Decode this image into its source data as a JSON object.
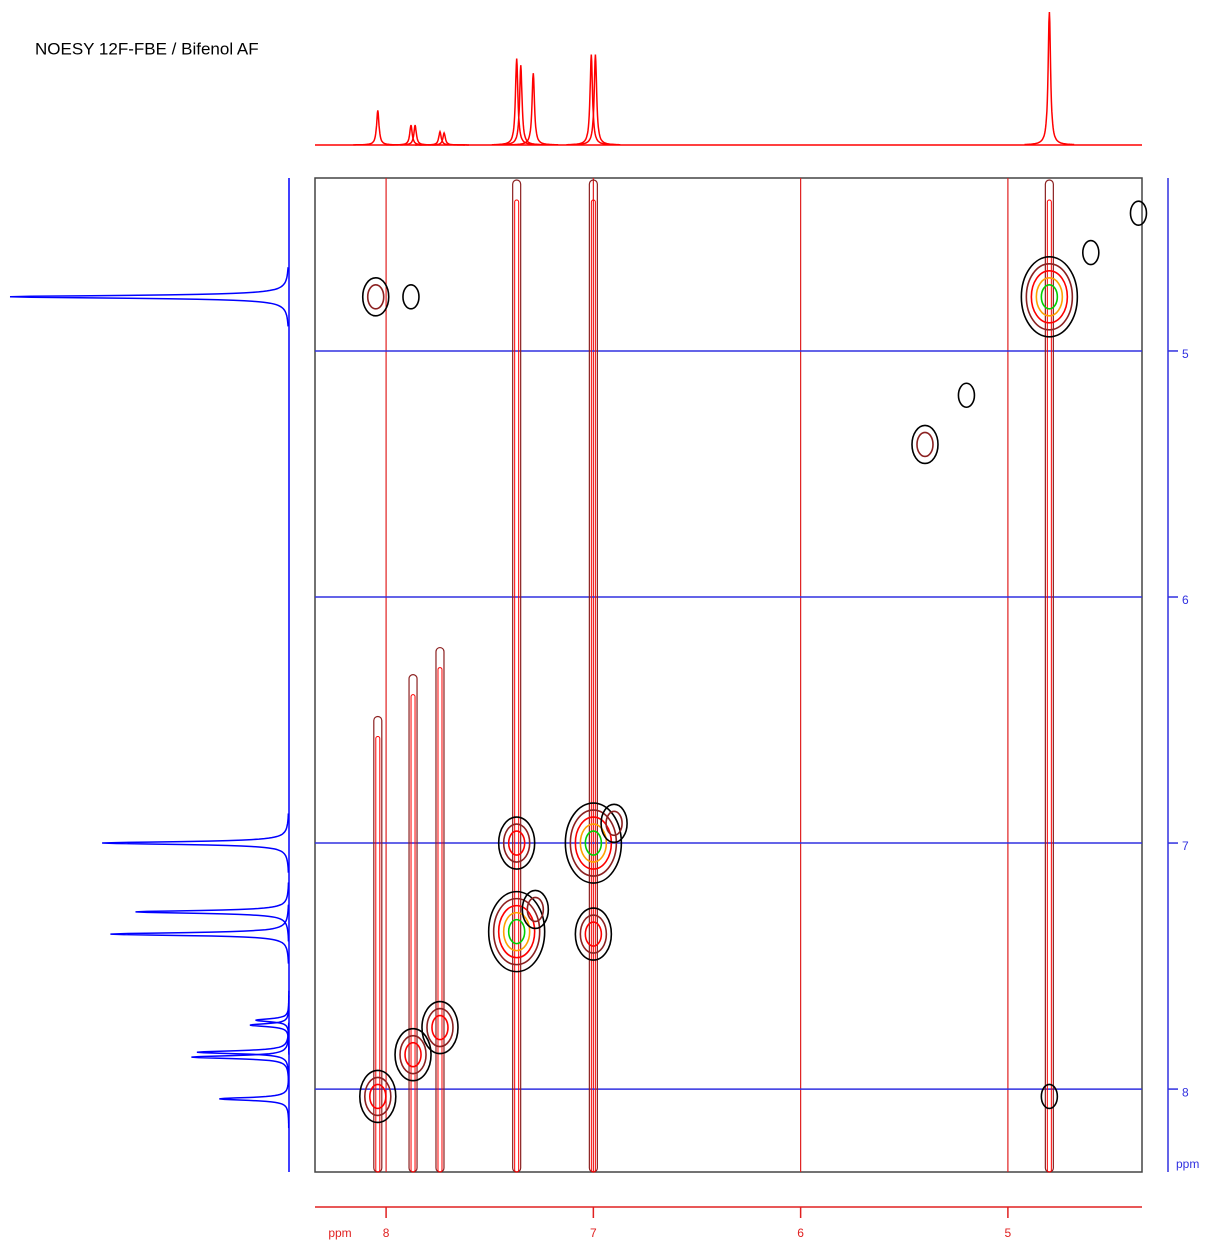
{
  "chart_data": {
    "type": "nmr2d",
    "title": "NOESY 12F-FBE / Bifenol AF",
    "x_label": "ppm",
    "y_label": "ppm",
    "xlim": [
      8.343,
      4.353
    ],
    "ylim": [
      4.297,
      8.337
    ],
    "xticks": [
      8,
      7,
      6,
      5
    ],
    "yticks": [
      5,
      6,
      7,
      8
    ],
    "grid": true,
    "x_grid_color": "#e02020",
    "y_grid_color": "#3030e0",
    "contour_colors": [
      "#000000",
      "#8b2020",
      "#ff0000",
      "#ffa000",
      "#00d000"
    ],
    "peaks": [
      {
        "x": 8.04,
        "y": 8.03,
        "intensity": 0.6
      },
      {
        "x": 7.87,
        "y": 7.86,
        "intensity": 0.6
      },
      {
        "x": 7.74,
        "y": 7.75,
        "intensity": 0.55
      },
      {
        "x": 7.37,
        "y": 7.36,
        "intensity": 0.9
      },
      {
        "x": 7.0,
        "y": 7.0,
        "intensity": 0.9
      },
      {
        "x": 4.8,
        "y": 4.78,
        "intensity": 0.85
      },
      {
        "x": 7.37,
        "y": 7.0,
        "intensity": 0.45
      },
      {
        "x": 7.0,
        "y": 7.37,
        "intensity": 0.45
      },
      {
        "x": 7.28,
        "y": 7.27,
        "intensity": 0.4
      },
      {
        "x": 6.9,
        "y": 6.92,
        "intensity": 0.35
      },
      {
        "x": 8.05,
        "y": 4.78,
        "intensity": 0.25
      },
      {
        "x": 7.88,
        "y": 4.78,
        "intensity": 0.2
      },
      {
        "x": 5.4,
        "y": 5.38,
        "intensity": 0.25
      },
      {
        "x": 5.2,
        "y": 5.18,
        "intensity": 0.2
      },
      {
        "x": 4.8,
        "y": 8.03,
        "intensity": 0.2
      },
      {
        "x": 4.37,
        "y": 4.44,
        "intensity": 0.15
      },
      {
        "x": 4.6,
        "y": 4.6,
        "intensity": 0.15
      }
    ],
    "top_projection": {
      "color": "#ff0000",
      "peaks": [
        {
          "ppm": 8.04,
          "height": 0.26
        },
        {
          "ppm": 7.88,
          "height": 0.15
        },
        {
          "ppm": 7.86,
          "height": 0.15
        },
        {
          "ppm": 7.74,
          "height": 0.1
        },
        {
          "ppm": 7.72,
          "height": 0.09
        },
        {
          "ppm": 7.37,
          "height": 0.65
        },
        {
          "ppm": 7.35,
          "height": 0.6
        },
        {
          "ppm": 7.29,
          "height": 0.54
        },
        {
          "ppm": 7.01,
          "height": 0.68
        },
        {
          "ppm": 6.99,
          "height": 0.68
        },
        {
          "ppm": 4.8,
          "height": 1.0
        }
      ]
    },
    "left_projection": {
      "color": "#0000ff",
      "peaks": [
        {
          "ppm": 4.78,
          "height": 1.0
        },
        {
          "ppm": 7.0,
          "height": 0.67
        },
        {
          "ppm": 7.28,
          "height": 0.55
        },
        {
          "ppm": 7.37,
          "height": 0.64
        },
        {
          "ppm": 7.74,
          "height": 0.14
        },
        {
          "ppm": 7.72,
          "height": 0.12
        },
        {
          "ppm": 7.87,
          "height": 0.35
        },
        {
          "ppm": 7.85,
          "height": 0.33
        },
        {
          "ppm": 8.04,
          "height": 0.25
        }
      ]
    }
  }
}
